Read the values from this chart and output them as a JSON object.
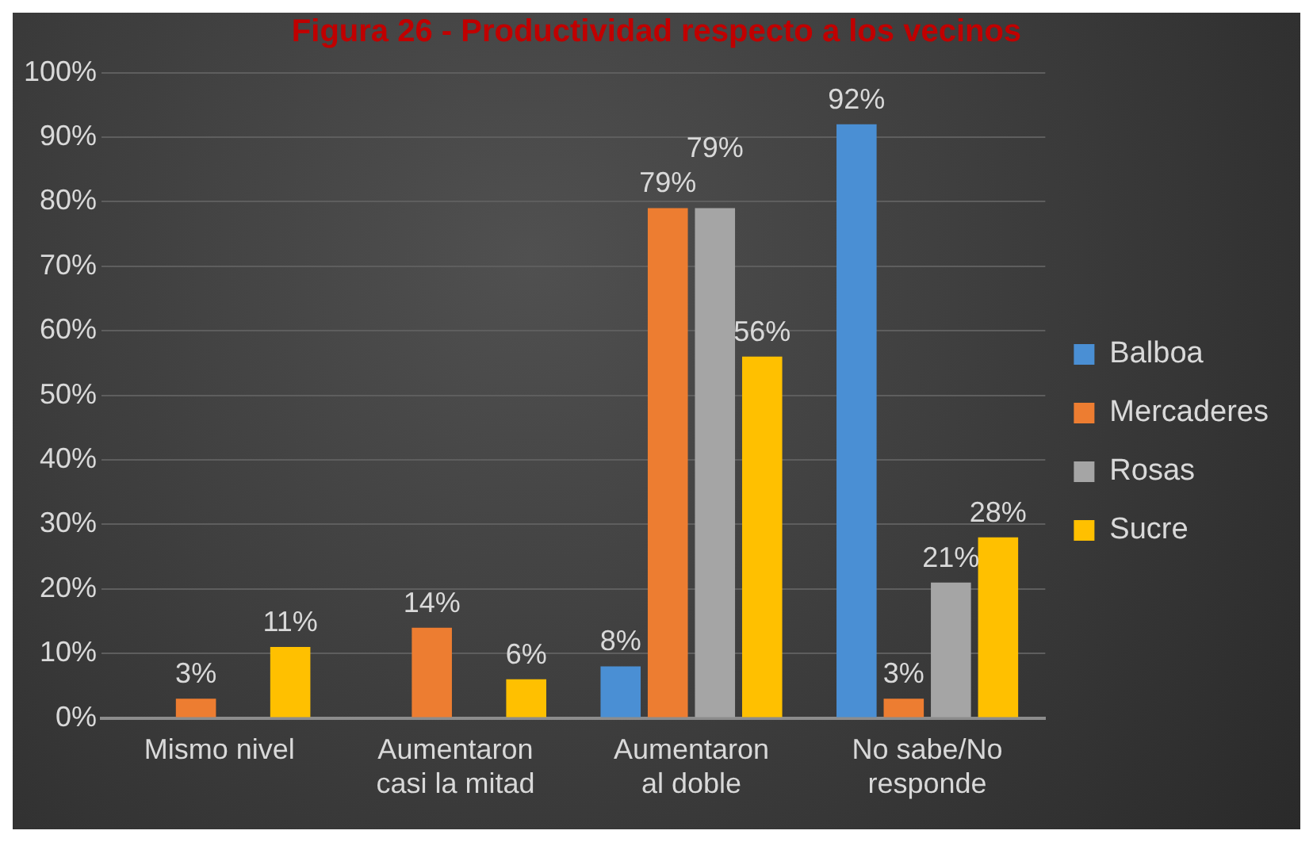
{
  "chart_data": {
    "type": "bar",
    "title": "Figura 26 - Productividad respecto a los vecinos",
    "categories": [
      "Mismo nivel",
      "Aumentaron casi la mitad",
      "Aumentaron al doble",
      "No sabe/No responde"
    ],
    "series": [
      {
        "name": "Balboa",
        "color": "#4a8fd4",
        "values": [
          0,
          0,
          8,
          92
        ],
        "value_labels": [
          null,
          null,
          "8%",
          "92%"
        ]
      },
      {
        "name": "Mercaderes",
        "color": "#ed7d31",
        "values": [
          3,
          14,
          79,
          3
        ],
        "value_labels": [
          "3%",
          "14%",
          "79%",
          "3%"
        ]
      },
      {
        "name": "Rosas",
        "color": "#a5a5a5",
        "values": [
          0,
          0,
          79,
          21
        ],
        "value_labels": [
          null,
          null,
          "79%",
          "21%"
        ]
      },
      {
        "name": "Sucre",
        "color": "#ffc000",
        "values": [
          11,
          6,
          56,
          28
        ],
        "value_labels": [
          "11%",
          "6%",
          "56%",
          "28%"
        ]
      }
    ],
    "ylim": [
      0,
      100
    ],
    "yticks": [
      {
        "value": 0,
        "label": "0%"
      },
      {
        "value": 10,
        "label": "10%"
      },
      {
        "value": 20,
        "label": "20%"
      },
      {
        "value": 30,
        "label": "30%"
      },
      {
        "value": 40,
        "label": "40%"
      },
      {
        "value": 50,
        "label": "50%"
      },
      {
        "value": 60,
        "label": "60%"
      },
      {
        "value": 70,
        "label": "70%"
      },
      {
        "value": 80,
        "label": "80%"
      },
      {
        "value": 90,
        "label": "90%"
      },
      {
        "value": 100,
        "label": "100%"
      }
    ],
    "grid": "y",
    "legend": "right"
  }
}
